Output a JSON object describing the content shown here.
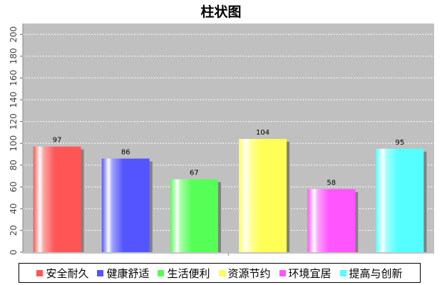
{
  "chart_data": {
    "type": "bar",
    "title": "柱状图",
    "categories": [
      "安全耐久",
      "健康舒适",
      "生活便利",
      "资源节约",
      "环境宜居",
      "提高与创新"
    ],
    "values": [
      97,
      86,
      67,
      104,
      58,
      95
    ],
    "colors": [
      "#ff5555",
      "#5555ff",
      "#55ff55",
      "#ffff55",
      "#ff55ff",
      "#55ffff"
    ],
    "ylim": [
      0,
      210
    ],
    "yticks": [
      "0",
      "20",
      "40",
      "60",
      "80",
      "100",
      "120",
      "140",
      "160",
      "180",
      "200"
    ],
    "xlabel": "",
    "ylabel": "",
    "grid": true,
    "legend": "bottom",
    "plot_background": "#c0c0c0"
  }
}
